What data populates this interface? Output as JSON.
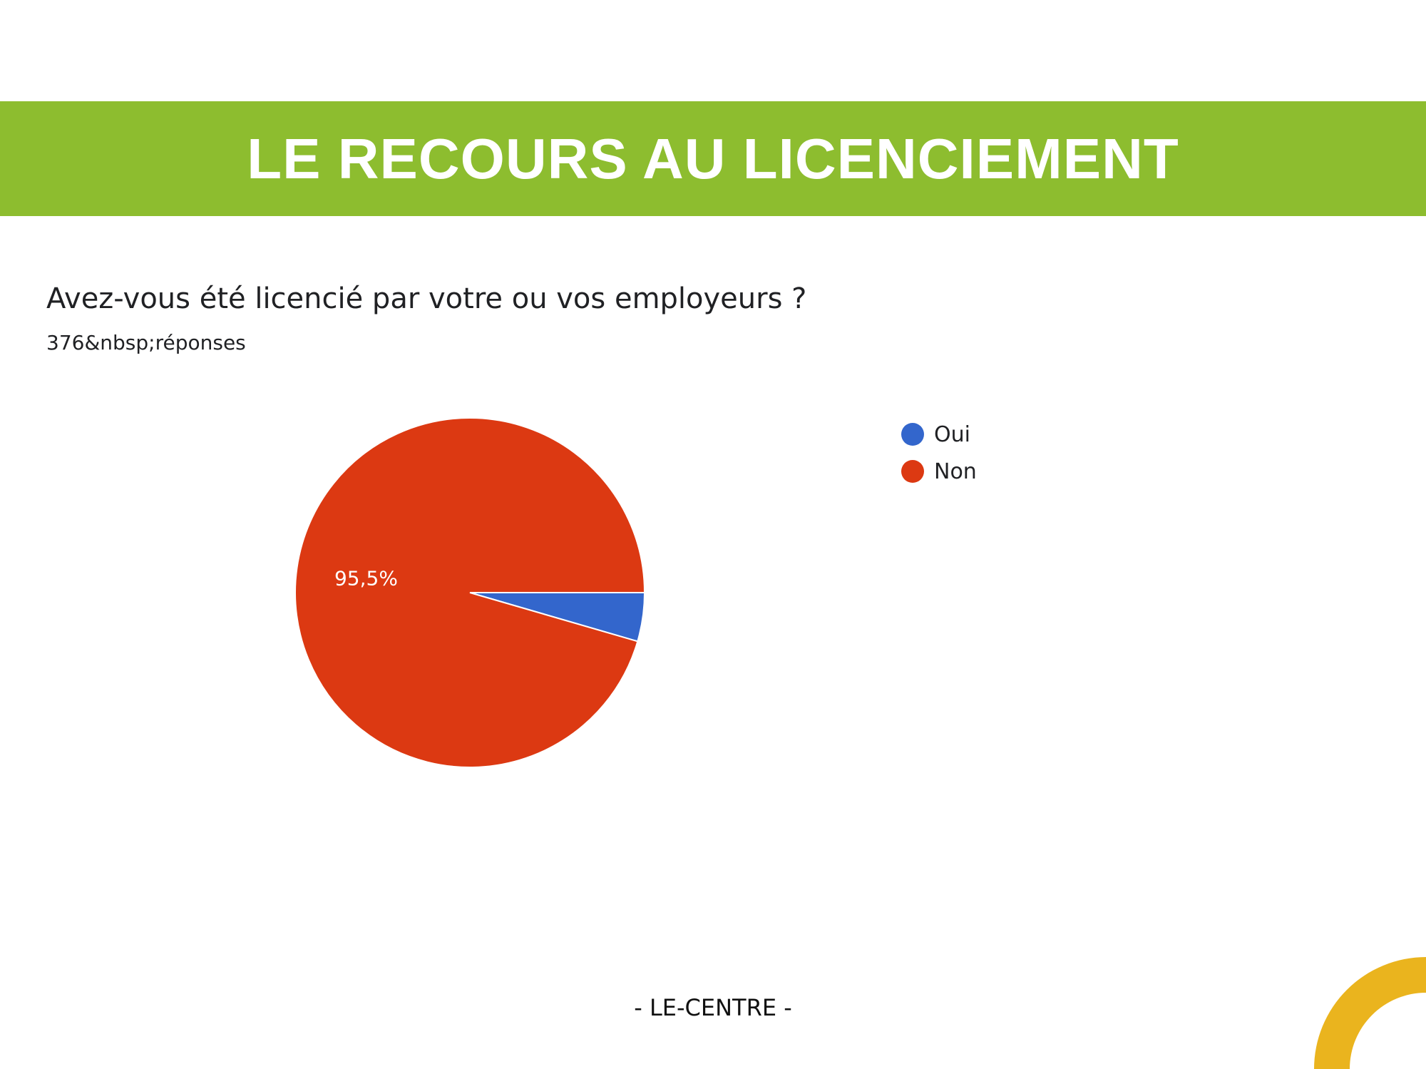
{
  "header": {
    "title": "LE RECOURS AU LICENCIEMENT",
    "banner_color": "#8dbd2f"
  },
  "question": {
    "text": "Avez-vous été licencié par votre ou vos employeurs ?",
    "responses": "376&nbsp;réponses"
  },
  "chart_data": {
    "type": "pie",
    "categories": [
      "Oui",
      "Non"
    ],
    "values": [
      4.5,
      95.5
    ],
    "colors": [
      "#3366cc",
      "#dc3912"
    ],
    "data_labels": [
      "",
      "95,5%"
    ],
    "legend_placement": "top-right"
  },
  "footer": {
    "text": "- LE-CENTRE -"
  },
  "decoration": {
    "arc_color": "#eab41e"
  }
}
